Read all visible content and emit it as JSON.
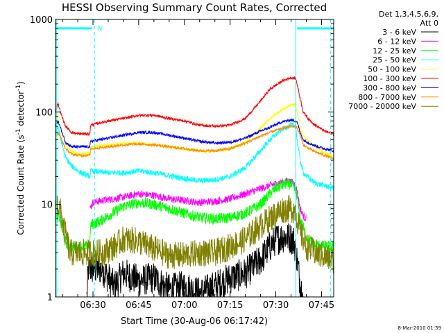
{
  "chart_data": {
    "type": "line",
    "title": "HESSI Observing Summary Count Rates, Corrected",
    "xlabel": "Start Time (30-Aug-06 06:17:42)",
    "ylabel_parts": [
      "Corrected Count Rate (s",
      "-1",
      " detector",
      "-1",
      ")"
    ],
    "yscale": "log",
    "ylim": [
      1,
      1000
    ],
    "xlim": [
      17.7,
      109.0
    ],
    "x_unit": "minutes after 06:00 UT",
    "x_ticks": [
      {
        "x": 30,
        "label": "06:30"
      },
      {
        "x": 45,
        "label": "06:45"
      },
      {
        "x": 60,
        "label": "07:00"
      },
      {
        "x": 75,
        "label": "07:15"
      },
      {
        "x": 90,
        "label": "07:30"
      },
      {
        "x": 105,
        "label": "07:45"
      }
    ],
    "y_ticks": [
      {
        "y": 1,
        "label": "1"
      },
      {
        "y": 10,
        "label": "10"
      },
      {
        "y": 100,
        "label": "100"
      },
      {
        "y": 1000,
        "label": "1000"
      }
    ],
    "legend_header": [
      "Det 1,3,4,5,6,9,",
      "Att 0"
    ],
    "legend_position": "right",
    "timestamp": "8-Mar-2010 01:59",
    "attenuator_bar": {
      "color": "#00ffff",
      "segments": [
        [
          18.0,
          29.7
        ],
        [
          97.0,
          109.0
        ]
      ],
      "label": "N",
      "label_x": 31.5,
      "y": 800
    },
    "vertical_markers": [
      {
        "x": 18.0,
        "style": "solid"
      },
      {
        "x": 30.5,
        "style": "dashed"
      },
      {
        "x": 96.6,
        "style": "solid"
      },
      {
        "x": 108.0,
        "style": "dashed"
      }
    ],
    "series": [
      {
        "name": "3 - 6 keV",
        "color": "#000000",
        "noise": 0.35,
        "start": 28,
        "points": [
          [
            28,
            1
          ],
          [
            28.5,
            2
          ],
          [
            33,
            2
          ],
          [
            37,
            1.3
          ],
          [
            40,
            1.8
          ],
          [
            45,
            1.5
          ],
          [
            50,
            1.6
          ],
          [
            55,
            1.2
          ],
          [
            60,
            1.3
          ],
          [
            65,
            1.1
          ],
          [
            70,
            1.3
          ],
          [
            75,
            1.6
          ],
          [
            80,
            1.8
          ],
          [
            85,
            2.5
          ],
          [
            88,
            3.5
          ],
          [
            90,
            4.2
          ],
          [
            93,
            4.5
          ],
          [
            95,
            4.3
          ],
          [
            96,
            4.0
          ],
          [
            97,
            2.5
          ],
          [
            98,
            1.4
          ],
          [
            99,
            1.0
          ]
        ]
      },
      {
        "name": "6 - 12 keV",
        "color": "#ff00ff",
        "noise": 0.08,
        "start": 29,
        "points": [
          [
            29,
            9
          ],
          [
            30,
            10.5
          ],
          [
            33,
            11
          ],
          [
            40,
            12
          ],
          [
            45,
            13
          ],
          [
            50,
            12.5
          ],
          [
            55,
            11.5
          ],
          [
            60,
            11
          ],
          [
            65,
            10.5
          ],
          [
            70,
            10.8
          ],
          [
            75,
            11.5
          ],
          [
            80,
            13
          ],
          [
            84,
            14.5
          ],
          [
            88,
            16
          ],
          [
            92,
            17.5
          ],
          [
            94,
            18
          ],
          [
            96,
            17
          ],
          [
            97,
            14
          ],
          [
            98,
            9
          ],
          [
            99,
            7.5
          ],
          [
            100,
            7
          ]
        ]
      },
      {
        "name": "12 - 25 keV",
        "color": "#00ff00",
        "noise": 0.12,
        "points": [
          [
            17.7,
            7
          ],
          [
            19,
            7.5
          ],
          [
            20,
            5
          ],
          [
            21,
            4
          ],
          [
            22,
            3.5
          ],
          [
            29,
            3.5
          ],
          [
            29.2,
            6
          ],
          [
            32,
            6.5
          ],
          [
            35,
            7.5
          ],
          [
            40,
            9.5
          ],
          [
            45,
            10.5
          ],
          [
            50,
            10
          ],
          [
            55,
            9
          ],
          [
            60,
            8
          ],
          [
            65,
            7.2
          ],
          [
            70,
            7
          ],
          [
            75,
            7.2
          ],
          [
            80,
            8
          ],
          [
            85,
            10
          ],
          [
            88,
            13
          ],
          [
            90,
            15
          ],
          [
            93,
            16.5
          ],
          [
            95,
            16.5
          ],
          [
            96,
            15
          ],
          [
            97,
            12
          ],
          [
            98,
            7
          ],
          [
            100,
            4.5
          ],
          [
            103,
            3.6
          ],
          [
            109,
            3.5
          ]
        ]
      },
      {
        "name": "25 - 50 keV",
        "color": "#00ffff",
        "noise": 0.06,
        "points": [
          [
            17.7,
            60
          ],
          [
            18.5,
            70
          ],
          [
            19.5,
            50
          ],
          [
            21,
            32
          ],
          [
            23,
            26
          ],
          [
            26,
            22
          ],
          [
            29,
            20
          ],
          [
            29.2,
            23
          ],
          [
            35,
            22
          ],
          [
            40,
            22
          ],
          [
            45,
            23
          ],
          [
            50,
            22
          ],
          [
            55,
            20.5
          ],
          [
            60,
            19
          ],
          [
            65,
            18
          ],
          [
            70,
            18.5
          ],
          [
            75,
            20
          ],
          [
            80,
            25
          ],
          [
            84,
            35
          ],
          [
            88,
            50
          ],
          [
            92,
            65
          ],
          [
            95,
            72
          ],
          [
            96.5,
            70
          ],
          [
            97,
            50
          ],
          [
            98,
            30
          ],
          [
            99,
            22
          ],
          [
            101,
            19
          ],
          [
            103,
            17
          ],
          [
            106,
            16
          ],
          [
            109,
            15
          ]
        ]
      },
      {
        "name": "50 - 100 keV",
        "color": "#ffff00",
        "noise": 0.03,
        "points": [
          [
            17.7,
            70
          ],
          [
            18.5,
            90
          ],
          [
            19.5,
            65
          ],
          [
            21,
            45
          ],
          [
            23,
            38
          ],
          [
            25,
            35
          ],
          [
            29,
            36
          ],
          [
            29.2,
            42
          ],
          [
            35,
            44
          ],
          [
            40,
            46
          ],
          [
            45,
            46
          ],
          [
            50,
            44
          ],
          [
            55,
            42
          ],
          [
            60,
            40
          ],
          [
            65,
            38
          ],
          [
            70,
            38
          ],
          [
            75,
            40
          ],
          [
            80,
            48
          ],
          [
            84,
            62
          ],
          [
            88,
            85
          ],
          [
            92,
            105
          ],
          [
            95,
            120
          ],
          [
            96.5,
            120
          ],
          [
            97,
            100
          ],
          [
            98,
            70
          ],
          [
            99,
            55
          ],
          [
            101,
            47
          ],
          [
            103,
            42
          ],
          [
            106,
            36
          ],
          [
            109,
            33
          ]
        ]
      },
      {
        "name": "100 - 300 keV",
        "color": "#ff0000",
        "noise": 0.03,
        "points": [
          [
            17.7,
            100
          ],
          [
            18.5,
            125
          ],
          [
            19.5,
            95
          ],
          [
            21,
            70
          ],
          [
            23,
            60
          ],
          [
            25,
            58
          ],
          [
            29,
            58
          ],
          [
            29.2,
            72
          ],
          [
            35,
            80
          ],
          [
            40,
            85
          ],
          [
            45,
            92
          ],
          [
            50,
            92
          ],
          [
            55,
            85
          ],
          [
            60,
            80
          ],
          [
            65,
            72
          ],
          [
            70,
            70
          ],
          [
            75,
            72
          ],
          [
            80,
            85
          ],
          [
            84,
            120
          ],
          [
            88,
            175
          ],
          [
            92,
            215
          ],
          [
            95,
            235
          ],
          [
            96.5,
            230
          ],
          [
            97,
            200
          ],
          [
            98,
            140
          ],
          [
            99,
            100
          ],
          [
            101,
            82
          ],
          [
            103,
            72
          ],
          [
            106,
            62
          ],
          [
            109,
            58
          ]
        ]
      },
      {
        "name": "300 - 800 keV",
        "color": "#0000ff",
        "noise": 0.03,
        "points": [
          [
            17.7,
            70
          ],
          [
            18.5,
            80
          ],
          [
            19.5,
            65
          ],
          [
            21,
            47
          ],
          [
            23,
            42
          ],
          [
            25,
            42
          ],
          [
            29,
            42
          ],
          [
            29.2,
            48
          ],
          [
            35,
            52
          ],
          [
            40,
            56
          ],
          [
            45,
            60
          ],
          [
            50,
            60
          ],
          [
            55,
            56
          ],
          [
            60,
            52
          ],
          [
            65,
            48
          ],
          [
            70,
            46
          ],
          [
            75,
            47
          ],
          [
            80,
            52
          ],
          [
            84,
            60
          ],
          [
            88,
            68
          ],
          [
            92,
            78
          ],
          [
            95,
            82
          ],
          [
            96.5,
            80
          ],
          [
            97,
            78
          ],
          [
            98,
            60
          ],
          [
            99,
            50
          ],
          [
            101,
            46
          ],
          [
            103,
            43
          ],
          [
            106,
            40
          ],
          [
            109,
            38
          ]
        ]
      },
      {
        "name": "800 - 7000 keV",
        "color": "#ff8c00",
        "noise": 0.03,
        "points": [
          [
            17.7,
            55
          ],
          [
            18.5,
            60
          ],
          [
            19.5,
            52
          ],
          [
            21,
            40
          ],
          [
            23,
            35
          ],
          [
            25,
            34
          ],
          [
            29,
            34
          ],
          [
            29.2,
            40
          ],
          [
            35,
            42
          ],
          [
            40,
            44
          ],
          [
            45,
            45
          ],
          [
            50,
            44
          ],
          [
            55,
            42
          ],
          [
            60,
            40
          ],
          [
            65,
            38
          ],
          [
            70,
            38
          ],
          [
            75,
            40
          ],
          [
            80,
            46
          ],
          [
            84,
            53
          ],
          [
            88,
            60
          ],
          [
            92,
            66
          ],
          [
            95,
            70
          ],
          [
            96.5,
            70
          ],
          [
            97,
            68
          ],
          [
            98,
            55
          ],
          [
            99,
            44
          ],
          [
            101,
            40
          ],
          [
            103,
            37
          ],
          [
            106,
            34
          ],
          [
            109,
            31
          ]
        ]
      },
      {
        "name": "7000 - 20000 keV",
        "color": "#808000",
        "noise": 0.3,
        "points": [
          [
            17.7,
            10
          ],
          [
            18.5,
            10
          ],
          [
            19.5,
            8
          ],
          [
            20.5,
            5.5
          ],
          [
            21.5,
            4
          ],
          [
            22.5,
            3
          ],
          [
            29,
            3
          ],
          [
            33,
            3
          ],
          [
            37,
            3.5
          ],
          [
            40,
            4.2
          ],
          [
            45,
            4
          ],
          [
            50,
            3.3
          ],
          [
            55,
            2.8
          ],
          [
            60,
            2.8
          ],
          [
            65,
            3
          ],
          [
            70,
            3
          ],
          [
            75,
            3.5
          ],
          [
            80,
            4.2
          ],
          [
            84,
            5.5
          ],
          [
            88,
            7
          ],
          [
            92,
            8.8
          ],
          [
            95,
            9
          ],
          [
            96.5,
            8.5
          ],
          [
            97,
            7
          ],
          [
            98,
            5
          ],
          [
            100,
            3.5
          ],
          [
            103,
            3
          ],
          [
            109,
            2.5
          ]
        ]
      }
    ]
  }
}
